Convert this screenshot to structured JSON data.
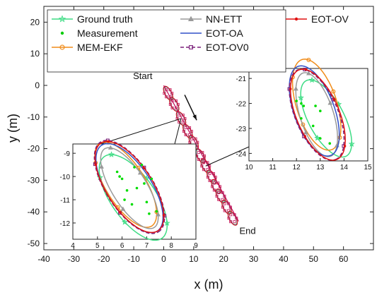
{
  "chart_data": [
    {
      "type": "scatter",
      "xlabel": "x (m)",
      "ylabel": "y (m)",
      "xlim": [
        -40,
        70
      ],
      "ylim": [
        -52,
        25
      ],
      "xticks": [
        -40,
        -30,
        -20,
        -10,
        0,
        10,
        20,
        30,
        40,
        50,
        60
      ],
      "yticks": [
        20,
        10,
        0,
        -10,
        -20,
        -30,
        -40,
        -50
      ],
      "grid": false,
      "legend": {
        "placement": "top",
        "entries": [
          {
            "name": "Ground truth",
            "color": "#3ddc84",
            "marker": "star",
            "line": "solid"
          },
          {
            "name": "Measurement",
            "color": "#00cc00",
            "marker": "dot",
            "line": "none"
          },
          {
            "name": "MEM-EKF",
            "color": "#f08c1a",
            "marker": "circle",
            "line": "solid"
          },
          {
            "name": "NN-ETT",
            "color": "#9a9a9a",
            "marker": "triangle",
            "line": "solid"
          },
          {
            "name": "EOT-OA",
            "color": "#3050c8",
            "marker": "none",
            "line": "solid"
          },
          {
            "name": "EOT-OV0",
            "color": "#7a1f7a",
            "marker": "square",
            "line": "dashed"
          },
          {
            "name": "EOT-OV",
            "color": "#e01010",
            "marker": "dot",
            "line": "solid"
          }
        ]
      },
      "annotations": [
        {
          "text": "Start",
          "x": -7,
          "y": 2
        },
        {
          "text": "End",
          "x": 28,
          "y": -47
        }
      ],
      "arrow": {
        "from": [
          7,
          -3
        ],
        "to": [
          11,
          -11
        ]
      },
      "track": {
        "start": [
          0,
          0
        ],
        "end": [
          25,
          -43
        ]
      },
      "ellipse_series": {
        "centers": [
          [
            1.5,
            -2.5
          ],
          [
            3.5,
            -6
          ],
          [
            5.8,
            -10.5
          ],
          [
            8,
            -14.5
          ],
          [
            10,
            -18
          ],
          [
            12.3,
            -22.3
          ],
          [
            14,
            -25.5
          ],
          [
            16,
            -29
          ],
          [
            17.5,
            -32
          ],
          [
            19,
            -35
          ],
          [
            21,
            -38.5
          ],
          [
            23,
            -42
          ]
        ],
        "semi_major": 2.2,
        "semi_minor": 1.0,
        "angle_deg": -60
      }
    },
    {
      "type": "scatter",
      "inset": "right",
      "xlim": [
        10,
        15
      ],
      "ylim": [
        -24.3,
        -20.6
      ],
      "xticks": [
        10,
        11,
        12,
        13,
        14,
        15
      ],
      "yticks": [
        -21,
        -22,
        -23,
        -24
      ],
      "ellipses": [
        {
          "series": "Ground truth",
          "cx": 13.25,
          "cy": -22.6,
          "a": 1.8,
          "b": 0.75,
          "angle_deg": -62
        },
        {
          "series": "MEM-EKF",
          "cx": 12.85,
          "cy": -22.05,
          "a": 2.0,
          "b": 0.85,
          "angle_deg": -72
        },
        {
          "series": "NN-ETT",
          "cx": 12.85,
          "cy": -22.45,
          "a": 1.85,
          "b": 0.7,
          "angle_deg": -72
        },
        {
          "series": "EOT-OA",
          "cx": 12.75,
          "cy": -22.3,
          "a": 2.0,
          "b": 0.85,
          "angle_deg": -70
        },
        {
          "series": "EOT-OV0",
          "cx": 12.85,
          "cy": -22.45,
          "a": 2.05,
          "b": 0.9,
          "angle_deg": -67
        },
        {
          "series": "EOT-OV",
          "cx": 12.9,
          "cy": -22.45,
          "a": 2.05,
          "b": 0.9,
          "angle_deg": -67
        }
      ],
      "measurements": [
        [
          12.0,
          -21.9
        ],
        [
          12.2,
          -22.0
        ],
        [
          12.8,
          -22.1
        ],
        [
          13.0,
          -22.3
        ],
        [
          12.2,
          -22.6
        ],
        [
          12.7,
          -22.9
        ],
        [
          13.0,
          -23.4
        ],
        [
          13.4,
          -23.6
        ],
        [
          12.3,
          -22.1
        ]
      ]
    },
    {
      "type": "scatter",
      "inset": "left",
      "xlim": [
        4,
        9
      ],
      "ylim": [
        -12.7,
        -8.6
      ],
      "xticks": [
        4,
        5,
        6,
        7,
        8,
        9
      ],
      "yticks": [
        -9,
        -10,
        -11,
        -12
      ],
      "ellipses": [
        {
          "series": "Ground truth",
          "cx": 6.45,
          "cy": -10.9,
          "a": 2.15,
          "b": 0.95,
          "angle_deg": -55
        },
        {
          "series": "MEM-EKF",
          "cx": 6.15,
          "cy": -10.35,
          "a": 2.1,
          "b": 0.85,
          "angle_deg": -58
        },
        {
          "series": "NN-ETT",
          "cx": 6.3,
          "cy": -10.5,
          "a": 2.0,
          "b": 0.75,
          "angle_deg": -58
        },
        {
          "series": "EOT-OA",
          "cx": 6.3,
          "cy": -10.5,
          "a": 2.2,
          "b": 0.95,
          "angle_deg": -57
        },
        {
          "series": "EOT-OV0",
          "cx": 6.3,
          "cy": -10.45,
          "a": 2.3,
          "b": 1.0,
          "angle_deg": -57
        },
        {
          "series": "EOT-OV",
          "cx": 6.3,
          "cy": -10.45,
          "a": 2.25,
          "b": 0.98,
          "angle_deg": -57
        }
      ],
      "measurements": [
        [
          5.8,
          -9.8
        ],
        [
          6.0,
          -10.1
        ],
        [
          6.2,
          -10.6
        ],
        [
          6.5,
          -9.6
        ],
        [
          6.4,
          -11.2
        ],
        [
          7.0,
          -11.1
        ],
        [
          7.2,
          -10.1
        ],
        [
          6.6,
          -10.5
        ],
        [
          5.9,
          -10.0
        ],
        [
          6.8,
          -9.5
        ],
        [
          7.1,
          -11.6
        ],
        [
          6.1,
          -11.0
        ],
        [
          6.9,
          -10.3
        ],
        [
          7.4,
          -11.5
        ]
      ]
    }
  ]
}
